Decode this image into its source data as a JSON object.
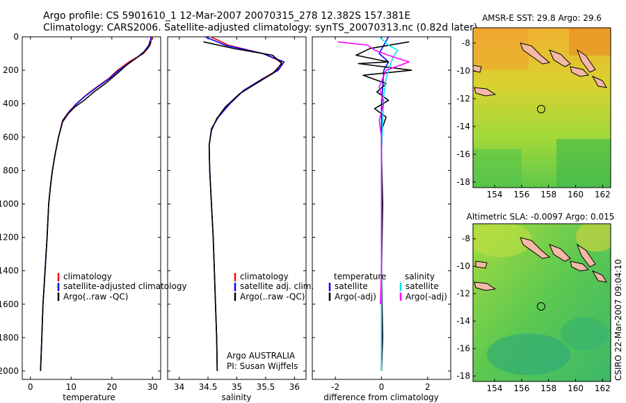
{
  "title": {
    "line1": "Argo profile: CS 5901610_1 12-Mar-2007 20070315_278 12.382S 157.381E",
    "line2": "Climatology: CARS2006. Satellite-adjusted climatology: synTS_20070313.nc (0.82d later)"
  },
  "footer": {
    "program": "Argo AUSTRALIA",
    "pi": "PI: Susan Wijffels",
    "credit": "CSIRO 22-Mar-2007 09:04:10"
  },
  "colors": {
    "climatology": "#ff0000",
    "satellite": "#0000ff",
    "argo": "#000000",
    "salinity_satellite": "#00e5ee",
    "salinity_argo": "#ff00ff",
    "coast": "#f4b8a6",
    "marker": "#000000"
  },
  "chart_data": [
    {
      "id": "temperature",
      "type": "line",
      "xlabel": "temperature",
      "ylabel": "",
      "xlim": [
        -2,
        32
      ],
      "ylim": [
        2050,
        0
      ],
      "xticks": [
        0,
        10,
        20,
        30
      ],
      "yticks": [
        0,
        200,
        400,
        600,
        800,
        1000,
        1200,
        1400,
        1600,
        1800,
        2000
      ],
      "legend": [
        "climatology",
        "satellite-adjusted climatology",
        "Argo(..raw -QC)"
      ],
      "legend_placement": "lower-right",
      "series": [
        {
          "name": "climatology",
          "color": "#ff0000",
          "points": [
            [
              29.9,
              0
            ],
            [
              29.4,
              50
            ],
            [
              27.8,
              100
            ],
            [
              24.2,
              150
            ],
            [
              21.4,
              200
            ],
            [
              19.2,
              250
            ],
            [
              16.3,
              300
            ],
            [
              13.6,
              350
            ],
            [
              11.3,
              400
            ],
            [
              9.4,
              450
            ],
            [
              7.9,
              500
            ],
            [
              6.9,
              600
            ],
            [
              6.1,
              700
            ],
            [
              5.4,
              800
            ],
            [
              4.9,
              900
            ],
            [
              4.5,
              1000
            ],
            [
              4.1,
              1200
            ],
            [
              3.6,
              1400
            ],
            [
              3.1,
              1600
            ],
            [
              2.8,
              1800
            ],
            [
              2.5,
              2000
            ]
          ]
        },
        {
          "name": "satellite-adjusted climatology",
          "color": "#0000ff",
          "points": [
            [
              29.7,
              0
            ],
            [
              29.1,
              50
            ],
            [
              27.6,
              100
            ],
            [
              24.6,
              150
            ],
            [
              21.7,
              200
            ],
            [
              19.4,
              250
            ],
            [
              16.5,
              300
            ],
            [
              13.7,
              350
            ],
            [
              11.4,
              400
            ],
            [
              9.5,
              450
            ],
            [
              8.0,
              500
            ],
            [
              6.9,
              600
            ],
            [
              6.1,
              700
            ],
            [
              5.4,
              800
            ],
            [
              4.9,
              900
            ],
            [
              4.5,
              1000
            ],
            [
              4.1,
              1200
            ],
            [
              3.6,
              1400
            ],
            [
              3.1,
              1600
            ],
            [
              2.8,
              1800
            ],
            [
              2.5,
              2000
            ]
          ]
        },
        {
          "name": "Argo(..raw -QC)",
          "color": "#000000",
          "points": [
            [
              29.6,
              30
            ],
            [
              28.8,
              70
            ],
            [
              26.4,
              120
            ],
            [
              23.6,
              170
            ],
            [
              21.3,
              220
            ],
            [
              18.4,
              280
            ],
            [
              15.6,
              330
            ],
            [
              13.2,
              380
            ],
            [
              10.9,
              420
            ],
            [
              9.3,
              460
            ],
            [
              7.9,
              510
            ],
            [
              6.9,
              600
            ],
            [
              6.1,
              700
            ],
            [
              5.4,
              800
            ],
            [
              4.9,
              900
            ],
            [
              4.5,
              1000
            ],
            [
              4.1,
              1200
            ],
            [
              3.6,
              1400
            ],
            [
              3.1,
              1600
            ],
            [
              2.8,
              1800
            ],
            [
              2.5,
              2000
            ]
          ]
        }
      ]
    },
    {
      "id": "salinity",
      "type": "line",
      "xlabel": "salinity",
      "ylabel": "",
      "xlim": [
        33.8,
        36.2
      ],
      "ylim": [
        2050,
        0
      ],
      "xticks": [
        34,
        34.5,
        35,
        35.5,
        36
      ],
      "legend": [
        "climatology",
        "satellite adj. clim.",
        "Argo(..raw -QC)"
      ],
      "legend_placement": "lower-right",
      "series": [
        {
          "name": "climatology",
          "color": "#ff0000",
          "points": [
            [
              34.55,
              0
            ],
            [
              34.85,
              50
            ],
            [
              35.45,
              100
            ],
            [
              35.78,
              150
            ],
            [
              35.7,
              200
            ],
            [
              35.45,
              250
            ],
            [
              35.12,
              320
            ],
            [
              34.88,
              400
            ],
            [
              34.68,
              480
            ],
            [
              34.56,
              550
            ],
            [
              34.52,
              650
            ],
            [
              34.53,
              800
            ],
            [
              34.56,
              1000
            ],
            [
              34.59,
              1200
            ],
            [
              34.61,
              1400
            ],
            [
              34.63,
              1600
            ],
            [
              34.65,
              1800
            ],
            [
              34.66,
              2000
            ]
          ]
        },
        {
          "name": "satellite adj. clim.",
          "color": "#0000ff",
          "points": [
            [
              34.45,
              0
            ],
            [
              34.8,
              50
            ],
            [
              35.45,
              100
            ],
            [
              35.82,
              150
            ],
            [
              35.72,
              200
            ],
            [
              35.46,
              250
            ],
            [
              35.12,
              320
            ],
            [
              34.88,
              400
            ],
            [
              34.68,
              480
            ],
            [
              34.56,
              550
            ],
            [
              34.52,
              650
            ],
            [
              34.53,
              800
            ],
            [
              34.56,
              1000
            ],
            [
              34.59,
              1200
            ],
            [
              34.61,
              1400
            ],
            [
              34.63,
              1600
            ],
            [
              34.65,
              1800
            ],
            [
              34.66,
              2000
            ]
          ]
        },
        {
          "name": "Argo(..raw -QC)",
          "color": "#000000",
          "points": [
            [
              34.42,
              30
            ],
            [
              34.95,
              70
            ],
            [
              35.62,
              110
            ],
            [
              35.78,
              160
            ],
            [
              35.62,
              220
            ],
            [
              35.38,
              270
            ],
            [
              35.05,
              340
            ],
            [
              34.8,
              420
            ],
            [
              34.65,
              490
            ],
            [
              34.56,
              560
            ],
            [
              34.52,
              650
            ],
            [
              34.53,
              800
            ],
            [
              34.56,
              1000
            ],
            [
              34.59,
              1200
            ],
            [
              34.61,
              1400
            ],
            [
              34.63,
              1600
            ],
            [
              34.65,
              1800
            ],
            [
              34.66,
              2000
            ]
          ]
        }
      ]
    },
    {
      "id": "difference",
      "type": "line",
      "xlabel": "difference from climatology",
      "ylabel": "",
      "xlim": [
        -3,
        3
      ],
      "ylim": [
        2050,
        0
      ],
      "xticks": [
        -2,
        0,
        2
      ],
      "legend_groups": [
        {
          "header": "temperature",
          "entries": [
            "satellite",
            "Argo(-adj)"
          ]
        },
        {
          "header": "salinity",
          "entries": [
            "satellite",
            "Argo(-adj)"
          ]
        }
      ],
      "legend_placement": "lower",
      "series": [
        {
          "name": "temperature satellite",
          "color": "#0000ff",
          "points": [
            [
              0.3,
              0
            ],
            [
              0.1,
              50
            ],
            [
              -0.1,
              100
            ],
            [
              0.3,
              150
            ],
            [
              0.1,
              200
            ],
            [
              0.05,
              300
            ],
            [
              0.0,
              400
            ],
            [
              0.0,
              600
            ],
            [
              0.0,
              1000
            ],
            [
              0.0,
              2000
            ]
          ]
        },
        {
          "name": "temperature Argo(-adj)",
          "color": "#000000",
          "points": [
            [
              1.2,
              30
            ],
            [
              -0.5,
              70
            ],
            [
              -1.1,
              110
            ],
            [
              0.3,
              150
            ],
            [
              -1.0,
              160
            ],
            [
              1.3,
              200
            ],
            [
              -0.8,
              230
            ],
            [
              0.2,
              280
            ],
            [
              -0.2,
              330
            ],
            [
              0.3,
              380
            ],
            [
              -0.3,
              430
            ],
            [
              0.2,
              480
            ],
            [
              0.0,
              560
            ],
            [
              0.0,
              700
            ],
            [
              0.05,
              1000
            ],
            [
              0.0,
              1400
            ],
            [
              0.05,
              1800
            ],
            [
              0.0,
              2000
            ]
          ]
        },
        {
          "name": "salinity satellite",
          "color": "#00e5ee",
          "points": [
            [
              -0.1,
              0
            ],
            [
              0.3,
              50
            ],
            [
              0.7,
              80
            ],
            [
              0.5,
              120
            ],
            [
              0.4,
              160
            ],
            [
              0.2,
              250
            ],
            [
              0.1,
              350
            ],
            [
              0.05,
              500
            ],
            [
              0.0,
              700
            ],
            [
              0.0,
              1000
            ],
            [
              0.0,
              2000
            ]
          ]
        },
        {
          "name": "salinity Argo(-adj)",
          "color": "#ff00ff",
          "points": [
            [
              -1.9,
              30
            ],
            [
              -0.6,
              50
            ],
            [
              -0.3,
              80
            ],
            [
              0.5,
              120
            ],
            [
              1.2,
              150
            ],
            [
              0.2,
              200
            ],
            [
              -0.1,
              300
            ],
            [
              0.1,
              400
            ],
            [
              -0.1,
              500
            ],
            [
              0.0,
              600
            ],
            [
              0.0,
              800
            ],
            [
              0.0,
              1100
            ],
            [
              0.0,
              1400
            ],
            [
              -0.05,
              1600
            ]
          ]
        }
      ]
    },
    {
      "id": "sst_map",
      "type": "heatmap",
      "title": "AMSR-E SST: 29.8 Argo: 29.6",
      "xlim": [
        152.4,
        162.6
      ],
      "ylim": [
        -18.4,
        -6.9
      ],
      "xticks": [
        154,
        156,
        158,
        160,
        162
      ],
      "yticks": [
        -8,
        -10,
        -12,
        -14,
        -16,
        -18
      ],
      "colormap": "green-to-orange (warmer = orange)",
      "marker": {
        "lon": 157.381,
        "lat": -12.382
      }
    },
    {
      "id": "sla_map",
      "type": "heatmap",
      "title": "Altimetric SLA: -0.0097 Argo: 0.015",
      "xlim": [
        152.4,
        162.6
      ],
      "ylim": [
        -18.4,
        -6.9
      ],
      "xticks": [
        154,
        156,
        158,
        160,
        162
      ],
      "yticks": [
        -8,
        -10,
        -12,
        -14,
        -16,
        -18
      ],
      "colormap": "teal-green-to-yellow",
      "marker": {
        "lon": 157.381,
        "lat": -12.382
      }
    }
  ]
}
